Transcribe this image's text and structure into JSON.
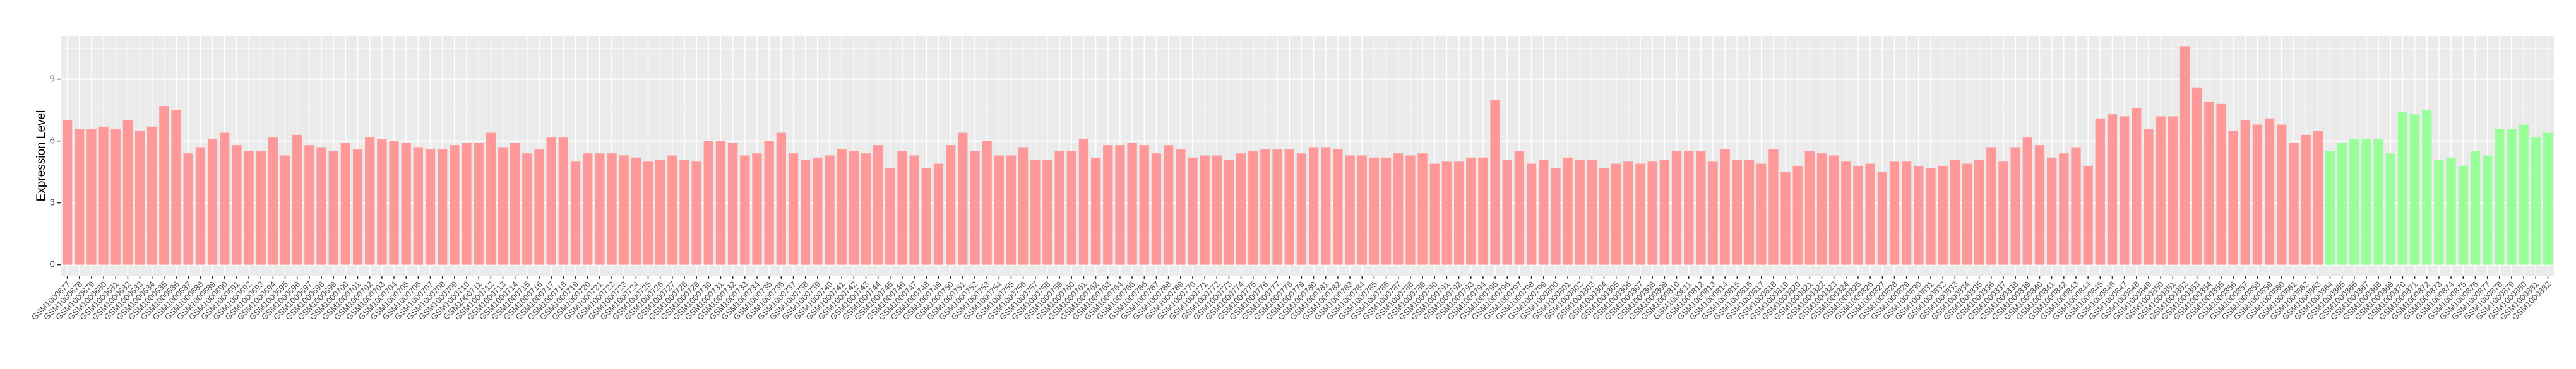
{
  "chart_data": {
    "type": "bar",
    "y_label": "Expression Level",
    "categories": [
      "GSM1000677",
      "GSM1000678",
      "GSM1000679",
      "GSM1000680",
      "GSM1000681",
      "GSM1000682",
      "GSM1000683",
      "GSM1000684",
      "GSM1000685",
      "GSM1000686",
      "GSM1000687",
      "GSM1000688",
      "GSM1000689",
      "GSM1000690",
      "GSM1000691",
      "GSM1000692",
      "GSM1000693",
      "GSM1000694",
      "GSM1000695",
      "GSM1000696",
      "GSM1000697",
      "GSM1000698",
      "GSM1000699",
      "GSM1000700",
      "GSM1000701",
      "GSM1000702",
      "GSM1000703",
      "GSM1000704",
      "GSM1000705",
      "GSM1000706",
      "GSM1000707",
      "GSM1000708",
      "GSM1000709",
      "GSM1000710",
      "GSM1000711",
      "GSM1000712",
      "GSM1000713",
      "GSM1000714",
      "GSM1000715",
      "GSM1000716",
      "GSM1000717",
      "GSM1000718",
      "GSM1000719",
      "GSM1000720",
      "GSM1000721",
      "GSM1000722",
      "GSM1000723",
      "GSM1000724",
      "GSM1000725",
      "GSM1000726",
      "GSM1000727",
      "GSM1000728",
      "GSM1000729",
      "GSM1000730",
      "GSM1000731",
      "GSM1000732",
      "GSM1000733",
      "GSM1000734",
      "GSM1000735",
      "GSM1000736",
      "GSM1000737",
      "GSM1000738",
      "GSM1000739",
      "GSM1000740",
      "GSM1000741",
      "GSM1000742",
      "GSM1000743",
      "GSM1000744",
      "GSM1000745",
      "GSM1000746",
      "GSM1000747",
      "GSM1000748",
      "GSM1000749",
      "GSM1000750",
      "GSM1000751",
      "GSM1000752",
      "GSM1000753",
      "GSM1000754",
      "GSM1000755",
      "GSM1000756",
      "GSM1000757",
      "GSM1000758",
      "GSM1000759",
      "GSM1000760",
      "GSM1000761",
      "GSM1000762",
      "GSM1000763",
      "GSM1000764",
      "GSM1000765",
      "GSM1000766",
      "GSM1000767",
      "GSM1000768",
      "GSM1000769",
      "GSM1000770",
      "GSM1000771",
      "GSM1000772",
      "GSM1000773",
      "GSM1000774",
      "GSM1000775",
      "GSM1000776",
      "GSM1000777",
      "GSM1000778",
      "GSM1000779",
      "GSM1000780",
      "GSM1000781",
      "GSM1000782",
      "GSM1000783",
      "GSM1000784",
      "GSM1000785",
      "GSM1000786",
      "GSM1000787",
      "GSM1000788",
      "GSM1000789",
      "GSM1000790",
      "GSM1000791",
      "GSM1000792",
      "GSM1000793",
      "GSM1000794",
      "GSM1000795",
      "GSM1000796",
      "GSM1000797",
      "GSM1000798",
      "GSM1000799",
      "GSM1000800",
      "GSM1000801",
      "GSM1000802",
      "GSM1000803",
      "GSM1000804",
      "GSM1000805",
      "GSM1000806",
      "GSM1000807",
      "GSM1000808",
      "GSM1000809",
      "GSM1000810",
      "GSM1000811",
      "GSM1000812",
      "GSM1000813",
      "GSM1000814",
      "GSM1000815",
      "GSM1000816",
      "GSM1000817",
      "GSM1000818",
      "GSM1000819",
      "GSM1000820",
      "GSM1000821",
      "GSM1000822",
      "GSM1000823",
      "GSM1000824",
      "GSM1000825",
      "GSM1000826",
      "GSM1000827",
      "GSM1000828",
      "GSM1000829",
      "GSM1000830",
      "GSM1000831",
      "GSM1000832",
      "GSM1000833",
      "GSM1000834",
      "GSM1000835",
      "GSM1000836",
      "GSM1000837",
      "GSM1000838",
      "GSM1000839",
      "GSM1000840",
      "GSM1000841",
      "GSM1000842",
      "GSM1000843",
      "GSM1000844",
      "GSM1000845",
      "GSM1000846",
      "GSM1000847",
      "GSM1000848",
      "GSM1000849",
      "GSM1000850",
      "GSM1000851",
      "GSM1000852",
      "GSM1000853",
      "GSM1000854",
      "GSM1000855",
      "GSM1000856",
      "GSM1000857",
      "GSM1000858",
      "GSM1000859",
      "GSM1000860",
      "GSM1000861",
      "GSM1000862",
      "GSM1000863",
      "GSM1000864",
      "GSM1000865",
      "GSM1000866",
      "GSM1000867",
      "GSM1000868",
      "GSM1000869",
      "GSM1000870",
      "GSM1000871",
      "GSM1000872",
      "GSM1000873",
      "GSM1000874",
      "GSM1000875",
      "GSM1000876",
      "GSM1000877",
      "GSM1000878",
      "GSM1000879",
      "GSM1000880",
      "GSM1000881",
      "GSM1000882"
    ],
    "values": [
      7.0,
      6.6,
      6.6,
      6.7,
      6.6,
      7.0,
      6.5,
      6.7,
      7.7,
      7.5,
      5.4,
      5.7,
      6.1,
      6.4,
      5.8,
      5.5,
      5.5,
      6.2,
      5.3,
      6.3,
      5.8,
      5.7,
      5.5,
      5.9,
      5.6,
      6.2,
      6.1,
      6.0,
      5.9,
      5.7,
      5.6,
      5.6,
      5.8,
      5.9,
      5.9,
      6.4,
      5.7,
      5.9,
      5.4,
      5.6,
      6.2,
      6.2,
      5.0,
      5.4,
      5.4,
      5.4,
      5.3,
      5.2,
      5.0,
      5.1,
      5.3,
      5.1,
      5.0,
      6.0,
      6.0,
      5.9,
      5.3,
      5.4,
      6.0,
      6.4,
      5.4,
      5.1,
      5.2,
      5.3,
      5.6,
      5.5,
      5.4,
      5.8,
      4.7,
      5.5,
      5.3,
      4.7,
      4.9,
      5.8,
      6.4,
      5.5,
      6.0,
      5.3,
      5.3,
      5.7,
      5.1,
      5.1,
      5.5,
      5.5,
      6.1,
      5.2,
      5.8,
      5.8,
      5.9,
      5.8,
      5.4,
      5.8,
      5.6,
      5.2,
      5.3,
      5.3,
      5.1,
      5.4,
      5.5,
      5.6,
      5.6,
      5.6,
      5.4,
      5.7,
      5.7,
      5.6,
      5.3,
      5.3,
      5.2,
      5.2,
      5.4,
      5.3,
      5.4,
      4.9,
      5.0,
      5.0,
      5.2,
      5.2,
      8.0,
      5.1,
      5.5,
      4.9,
      5.1,
      4.7,
      5.2,
      5.1,
      5.1,
      4.7,
      4.9,
      5.0,
      4.9,
      5.0,
      5.1,
      5.5,
      5.5,
      5.5,
      5.0,
      5.6,
      5.1,
      5.1,
      4.9,
      5.6,
      4.5,
      4.8,
      5.5,
      5.4,
      5.3,
      5.0,
      4.8,
      4.9,
      4.5,
      5.0,
      5.0,
      4.8,
      4.7,
      4.8,
      5.1,
      4.9,
      5.1,
      5.7,
      5.0,
      5.7,
      6.2,
      5.8,
      5.2,
      5.4,
      5.7,
      4.8,
      7.1,
      7.3,
      7.2,
      7.6,
      6.6,
      7.2,
      7.2,
      10.6,
      8.6,
      7.9,
      7.8,
      6.5,
      7.0,
      6.8,
      7.1,
      6.8,
      5.9,
      6.3,
      6.5,
      5.5,
      5.9,
      6.1,
      6.1,
      6.1,
      5.4,
      7.4,
      7.3,
      7.5,
      5.1,
      5.2,
      4.8,
      5.5,
      5.3,
      6.6,
      6.6,
      6.8,
      6.2,
      6.4
    ],
    "colors": [
      "#FF9999",
      "#FF9999",
      "#FF9999",
      "#FF9999",
      "#FF9999",
      "#FF9999",
      "#FF9999",
      "#FF9999",
      "#FF9999",
      "#FF9999",
      "#FF9999",
      "#FF9999",
      "#FF9999",
      "#FF9999",
      "#FF9999",
      "#FF9999",
      "#FF9999",
      "#FF9999",
      "#FF9999",
      "#FF9999",
      "#FF9999",
      "#FF9999",
      "#FF9999",
      "#FF9999",
      "#FF9999",
      "#FF9999",
      "#FF9999",
      "#FF9999",
      "#FF9999",
      "#FF9999",
      "#FF9999",
      "#FF9999",
      "#FF9999",
      "#FF9999",
      "#FF9999",
      "#FF9999",
      "#FF9999",
      "#FF9999",
      "#FF9999",
      "#FF9999",
      "#FF9999",
      "#FF9999",
      "#FF9999",
      "#FF9999",
      "#FF9999",
      "#FF9999",
      "#FF9999",
      "#FF9999",
      "#FF9999",
      "#FF9999",
      "#FF9999",
      "#FF9999",
      "#FF9999",
      "#FF9999",
      "#FF9999",
      "#FF9999",
      "#FF9999",
      "#FF9999",
      "#FF9999",
      "#FF9999",
      "#FF9999",
      "#FF9999",
      "#FF9999",
      "#FF9999",
      "#FF9999",
      "#FF9999",
      "#FF9999",
      "#FF9999",
      "#FF9999",
      "#FF9999",
      "#FF9999",
      "#FF9999",
      "#FF9999",
      "#FF9999",
      "#FF9999",
      "#FF9999",
      "#FF9999",
      "#FF9999",
      "#FF9999",
      "#FF9999",
      "#FF9999",
      "#FF9999",
      "#FF9999",
      "#FF9999",
      "#FF9999",
      "#FF9999",
      "#FF9999",
      "#FF9999",
      "#FF9999",
      "#FF9999",
      "#FF9999",
      "#FF9999",
      "#FF9999",
      "#FF9999",
      "#FF9999",
      "#FF9999",
      "#FF9999",
      "#FF9999",
      "#FF9999",
      "#FF9999",
      "#FF9999",
      "#FF9999",
      "#FF9999",
      "#FF9999",
      "#FF9999",
      "#FF9999",
      "#FF9999",
      "#FF9999",
      "#FF9999",
      "#FF9999",
      "#FF9999",
      "#FF9999",
      "#FF9999",
      "#FF9999",
      "#FF9999",
      "#FF9999",
      "#FF9999",
      "#FF9999",
      "#FF9999",
      "#FF9999",
      "#FF9999",
      "#FF9999",
      "#FF9999",
      "#FF9999",
      "#FF9999",
      "#FF9999",
      "#FF9999",
      "#FF9999",
      "#FF9999",
      "#FF9999",
      "#FF9999",
      "#FF9999",
      "#FF9999",
      "#FF9999",
      "#FF9999",
      "#FF9999",
      "#FF9999",
      "#FF9999",
      "#FF9999",
      "#FF9999",
      "#FF9999",
      "#FF9999",
      "#FF9999",
      "#FF9999",
      "#FF9999",
      "#FF9999",
      "#FF9999",
      "#FF9999",
      "#FF9999",
      "#FF9999",
      "#FF9999",
      "#FF9999",
      "#FF9999",
      "#FF9999",
      "#FF9999",
      "#FF9999",
      "#FF9999",
      "#FF9999",
      "#FF9999",
      "#FF9999",
      "#FF9999",
      "#FF9999",
      "#FF9999",
      "#FF9999",
      "#FF9999",
      "#FF9999",
      "#FF9999",
      "#FF9999",
      "#FF9999",
      "#FF9999",
      "#FF9999",
      "#FF9999",
      "#FF9999",
      "#FF9999",
      "#FF9999",
      "#FF9999",
      "#FF9999",
      "#FF9999",
      "#FF9999",
      "#FF9999",
      "#FF9999",
      "#FF9999",
      "#FF9999",
      "#FF9999",
      "#FF9999",
      "#FF9999",
      "#FF9999",
      "#99FF99",
      "#99FF99",
      "#99FF99",
      "#99FF99",
      "#99FF99",
      "#99FF99",
      "#99FF99",
      "#99FF99",
      "#99FF99",
      "#99FF99",
      "#99FF99",
      "#99FF99",
      "#99FF99",
      "#99FF99",
      "#99FF99",
      "#99FF99",
      "#99FF99",
      "#99FF99",
      "#99FF99",
      "#99FF99",
      "#99FF99"
    ],
    "ylim": [
      -0.53,
      11.1
    ],
    "yticks": [
      0,
      3,
      6,
      9
    ],
    "grid": true
  }
}
